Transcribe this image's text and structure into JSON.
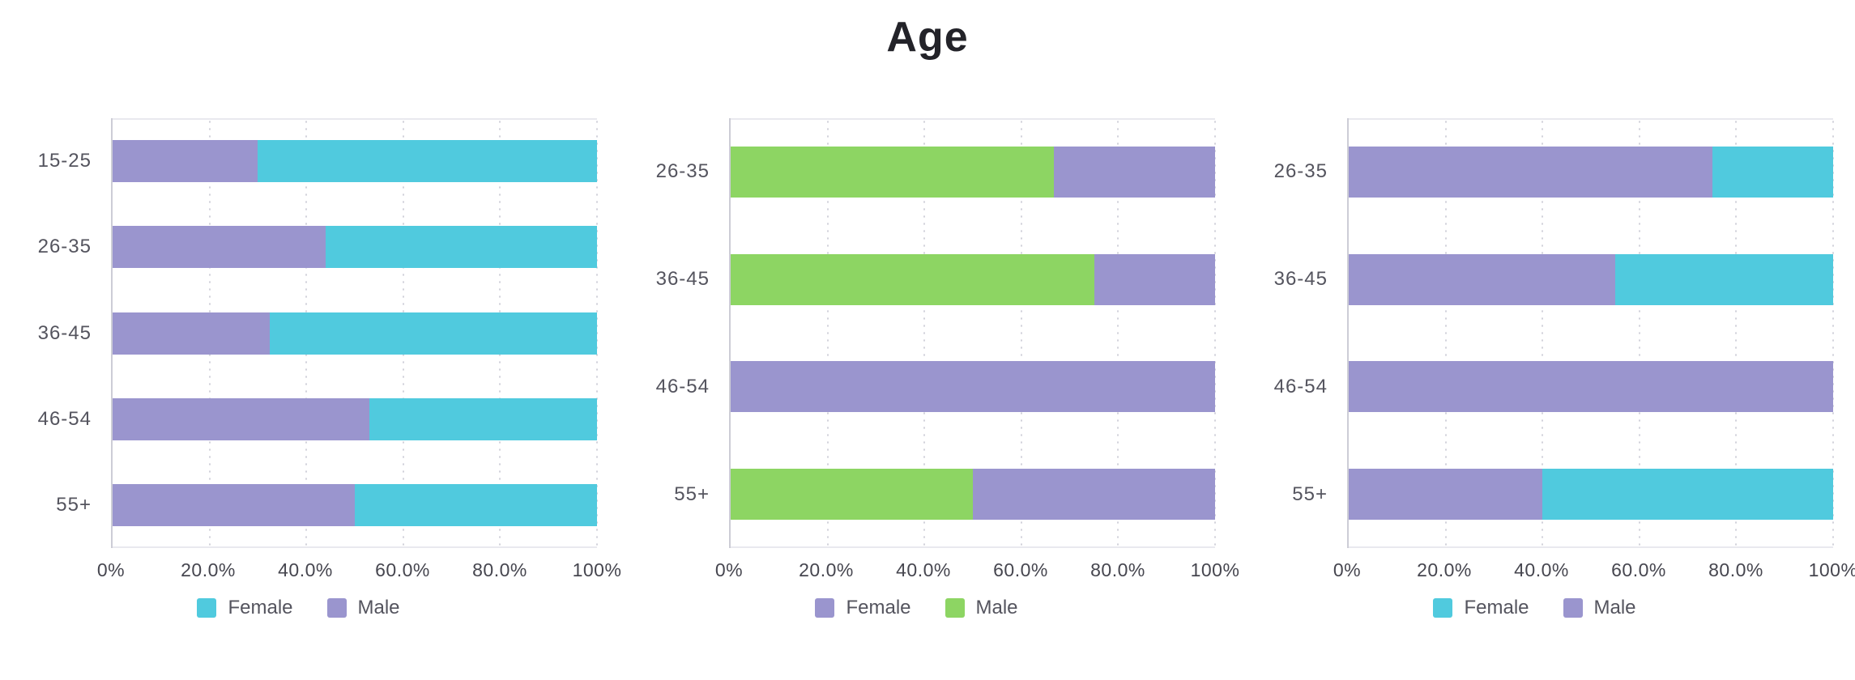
{
  "page": {
    "title": "Age"
  },
  "chart_data": [
    {
      "type": "bar",
      "orientation": "horizontal",
      "stacked": true,
      "units": "percent",
      "categories": [
        "15-25",
        "26-35",
        "36-45",
        "46-54",
        "55+"
      ],
      "series": [
        {
          "name": "Male",
          "color": "#9A95CE",
          "values": [
            30,
            44,
            32.5,
            53,
            50
          ]
        },
        {
          "name": "Female",
          "color": "#50CADE",
          "values": [
            70,
            56,
            67.5,
            47,
            50
          ]
        }
      ],
      "legend": [
        {
          "label": "Female",
          "color": "#50CADE"
        },
        {
          "label": "Male",
          "color": "#9A95CE"
        }
      ],
      "x_tick_labels": [
        "0%",
        "20.0%",
        "40.0%",
        "60.0%",
        "80.0%",
        "100%"
      ],
      "xlim": [
        0,
        100
      ],
      "grid": "vertical-dotted"
    },
    {
      "type": "bar",
      "orientation": "horizontal",
      "stacked": true,
      "units": "percent",
      "categories": [
        "26-35",
        "36-45",
        "46-54",
        "55+"
      ],
      "series": [
        {
          "name": "Male",
          "color": "#8DD563",
          "values": [
            66.7,
            75,
            0,
            50
          ]
        },
        {
          "name": "Female",
          "color": "#9A95CE",
          "values": [
            33.3,
            25,
            100,
            50
          ]
        }
      ],
      "legend": [
        {
          "label": "Female",
          "color": "#9A95CE"
        },
        {
          "label": "Male",
          "color": "#8DD563"
        }
      ],
      "x_tick_labels": [
        "0%",
        "20.0%",
        "40.0%",
        "60.0%",
        "80.0%",
        "100%"
      ],
      "xlim": [
        0,
        100
      ],
      "grid": "vertical-dotted"
    },
    {
      "type": "bar",
      "orientation": "horizontal",
      "stacked": true,
      "units": "percent",
      "categories": [
        "26-35",
        "36-45",
        "46-54",
        "55+"
      ],
      "series": [
        {
          "name": "Male",
          "color": "#9A95CE",
          "values": [
            75,
            55,
            100,
            40
          ]
        },
        {
          "name": "Female",
          "color": "#50CADE",
          "values": [
            25,
            45,
            0,
            60
          ]
        }
      ],
      "legend": [
        {
          "label": "Female",
          "color": "#50CADE"
        },
        {
          "label": "Male",
          "color": "#9A95CE"
        }
      ],
      "x_tick_labels": [
        "0%",
        "20.0%",
        "40.0%",
        "60.0%",
        "80.0%",
        "100%"
      ],
      "xlim": [
        0,
        100
      ],
      "grid": "vertical-dotted"
    }
  ]
}
